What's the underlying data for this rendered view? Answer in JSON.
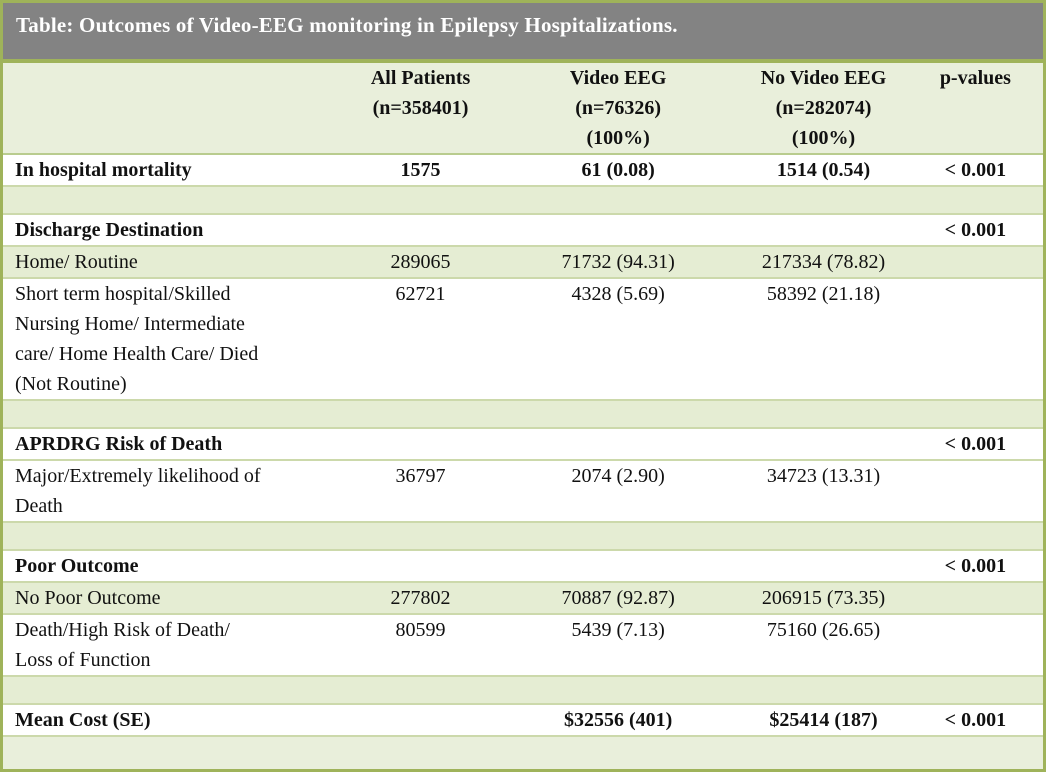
{
  "title": "Table: Outcomes of Video-EEG monitoring in Epilepsy Hospitalizations.",
  "colors": {
    "title_bar_bg": "#838383",
    "title_text": "#ffffff",
    "outer_border": "#9fb35a",
    "header_bg": "#e9efdb",
    "band_row_bg": "#e5edd3",
    "hairline": "#ccd9ab"
  },
  "columns": [
    {
      "label": ""
    },
    {
      "label": "All Patients\n(n=358401)"
    },
    {
      "label": "Video EEG\n(n=76326)\n(100%)"
    },
    {
      "label": "No Video EEG\n(n=282074)\n(100%)"
    },
    {
      "label": "p-values"
    }
  ],
  "rows": [
    {
      "label": "In hospital mortality",
      "bold": true,
      "shade": "white",
      "cells": [
        "1575",
        "61 (0.08)",
        "1514 (0.54)",
        "< 0.001"
      ]
    },
    {
      "label": "",
      "bold": false,
      "shade": "green",
      "cells": [
        "",
        "",
        "",
        ""
      ]
    },
    {
      "label": "Discharge Destination",
      "bold": true,
      "shade": "white",
      "cells": [
        "",
        "",
        "",
        "< 0.001"
      ]
    },
    {
      "label": "Home/ Routine",
      "bold": false,
      "shade": "green",
      "cells": [
        "289065",
        "71732 (94.31)",
        "217334 (78.82)",
        ""
      ]
    },
    {
      "label": "Short term hospital/Skilled\nNursing Home/ Intermediate\ncare/ Home Health Care/ Died\n(Not Routine)",
      "bold": false,
      "shade": "white",
      "cells": [
        "62721",
        "4328 (5.69)",
        "58392 (21.18)",
        ""
      ]
    },
    {
      "label": "",
      "bold": false,
      "shade": "green",
      "cells": [
        "",
        "",
        "",
        ""
      ]
    },
    {
      "label": "APRDRG Risk of Death",
      "bold": true,
      "shade": "white",
      "cells": [
        "",
        "",
        "",
        "< 0.001"
      ]
    },
    {
      "label": "Major/Extremely likelihood of\nDeath",
      "bold": false,
      "shade": "white",
      "cells": [
        "36797",
        "2074 (2.90)",
        "34723 (13.31)",
        ""
      ]
    },
    {
      "label": "",
      "bold": false,
      "shade": "green",
      "cells": [
        "",
        "",
        "",
        ""
      ]
    },
    {
      "label": "Poor Outcome",
      "bold": true,
      "shade": "white",
      "cells": [
        "",
        "",
        "",
        "< 0.001"
      ]
    },
    {
      "label": "No Poor Outcome",
      "bold": false,
      "shade": "green",
      "cells": [
        "277802",
        "70887 (92.87)",
        "206915 (73.35)",
        ""
      ]
    },
    {
      "label": "Death/High Risk of Death/\nLoss of Function",
      "bold": false,
      "shade": "white",
      "cells": [
        "80599",
        "5439 (7.13)",
        "75160 (26.65)",
        ""
      ]
    },
    {
      "label": "",
      "bold": false,
      "shade": "green",
      "cells": [
        "",
        "",
        "",
        ""
      ]
    },
    {
      "label": "Mean Cost (SE)",
      "bold": true,
      "shade": "white",
      "cells": [
        "",
        "$32556 (401)",
        "$25414 (187)",
        "< 0.001"
      ]
    }
  ]
}
